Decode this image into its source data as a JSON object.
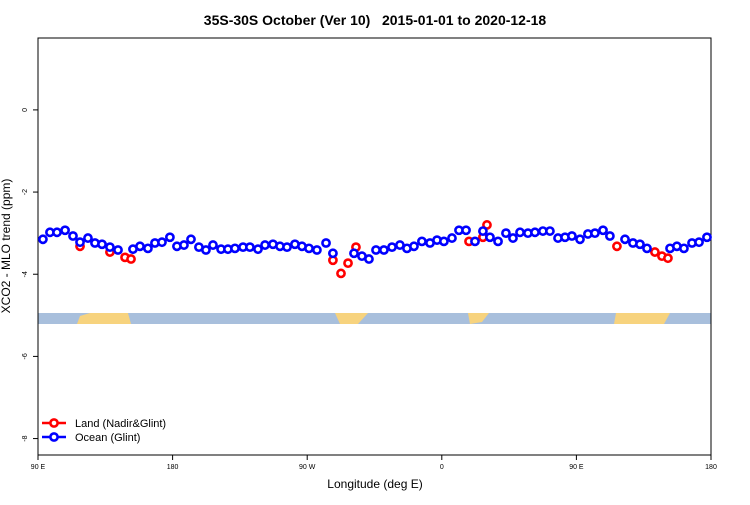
{
  "chart_data": {
    "type": "scatter",
    "title": "35S-30S October (Ver 10)   2015-01-01 to 2020-12-18",
    "x_label": "Longitude (deg E)",
    "y_label": "XCO2 - MLO trend (ppm)",
    "xlim": [
      90,
      540
    ],
    "ylim": [
      -8.4,
      1.75
    ],
    "xticks": [
      {
        "value": 90,
        "label": "90 E"
      },
      180,
      {
        "value": 270,
        "label": "90 W"
      },
      {
        "value": 360,
        "label": "0"
      },
      {
        "value": 450,
        "label": "90 E"
      },
      {
        "value": 540,
        "label": "180"
      }
    ],
    "yticks": [
      0,
      -2,
      -4,
      -6,
      -8
    ],
    "legend": "bottom-left",
    "series": [
      {
        "name": "Land (Nadir&Glint)",
        "color": "#ff0000",
        "x": [
          118.1,
          138.1,
          148.2,
          152.2,
          287.2,
          292.6,
          297.3,
          302.6,
          378.2,
          387.5,
          390.2,
          477.1,
          502.5,
          507.2,
          511.2
        ],
        "values": [
          -3.32,
          -3.46,
          -3.59,
          -3.63,
          -3.66,
          -3.98,
          -3.73,
          -3.34,
          -3.2,
          -3.1,
          -2.8,
          -3.32,
          -3.46,
          -3.56,
          -3.61
        ]
      },
      {
        "name": "Ocean (Glint)",
        "color": "#0000ff",
        "x": [
          93.3,
          98.0,
          102.7,
          108.1,
          113.4,
          118.1,
          123.4,
          128.1,
          132.8,
          138.1,
          143.5,
          153.5,
          158.2,
          163.5,
          168.2,
          172.9,
          178.2,
          182.9,
          187.6,
          192.3,
          197.6,
          202.3,
          207.0,
          212.4,
          217.0,
          221.7,
          227.1,
          231.7,
          237.1,
          241.8,
          247.1,
          251.8,
          256.5,
          261.8,
          266.5,
          271.2,
          276.5,
          282.6,
          287.2,
          301.3,
          306.6,
          311.3,
          316.0,
          321.3,
          326.7,
          332.0,
          336.7,
          341.4,
          346.7,
          352.1,
          356.8,
          361.4,
          366.8,
          371.5,
          376.2,
          382.2,
          387.5,
          392.2,
          397.6,
          402.9,
          407.6,
          412.3,
          417.6,
          422.3,
          427.6,
          432.3,
          437.7,
          442.4,
          447.0,
          452.4,
          457.7,
          462.4,
          467.8,
          472.4,
          482.5,
          487.8,
          492.5,
          497.2,
          512.6,
          517.2,
          521.9,
          527.3,
          532.0,
          537.3
        ],
        "values": [
          -3.15,
          -2.98,
          -2.98,
          -2.93,
          -3.07,
          -3.22,
          -3.12,
          -3.24,
          -3.27,
          -3.34,
          -3.41,
          -3.39,
          -3.32,
          -3.37,
          -3.24,
          -3.22,
          -3.1,
          -3.32,
          -3.29,
          -3.15,
          -3.34,
          -3.41,
          -3.29,
          -3.39,
          -3.39,
          -3.37,
          -3.34,
          -3.34,
          -3.39,
          -3.29,
          -3.27,
          -3.32,
          -3.34,
          -3.27,
          -3.32,
          -3.37,
          -3.41,
          -3.24,
          -3.49,
          -3.49,
          -3.56,
          -3.63,
          -3.41,
          -3.41,
          -3.34,
          -3.29,
          -3.37,
          -3.32,
          -3.2,
          -3.24,
          -3.17,
          -3.2,
          -3.12,
          -2.93,
          -2.93,
          -3.2,
          -2.95,
          -3.1,
          -3.2,
          -3.0,
          -3.12,
          -2.98,
          -3.0,
          -2.98,
          -2.95,
          -2.95,
          -3.12,
          -3.1,
          -3.07,
          -3.15,
          -3.02,
          -3.0,
          -2.93,
          -3.07,
          -3.15,
          -3.24,
          -3.27,
          -3.37,
          -3.37,
          -3.32,
          -3.37,
          -3.24,
          -3.22,
          -3.1
        ]
      }
    ]
  }
}
